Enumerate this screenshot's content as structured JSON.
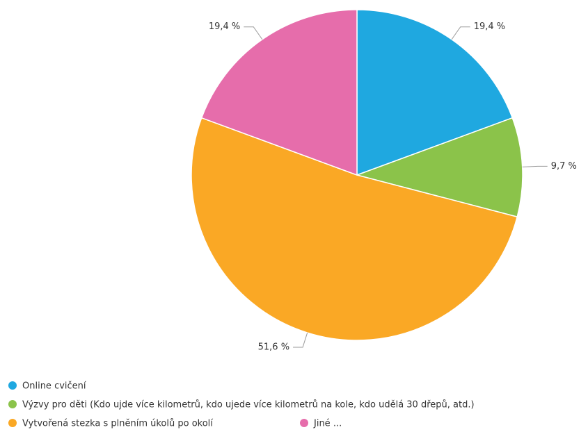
{
  "chart_data": {
    "type": "pie",
    "categories": [
      "Online cvičení",
      "Výzvy pro děti (Kdo ujde více kilometrů, kdo ujede více kilometrů na kole, kdo udělá 30 dřepů, atd.)",
      "Vytvořená stezka s plněním úkolů po okolí",
      "Jiné ..."
    ],
    "values": [
      19.4,
      9.7,
      51.6,
      19.4
    ],
    "value_labels": [
      "19,4 %",
      "9,7 %",
      "51,6 %",
      "19,4 %"
    ],
    "colors": [
      "#1fa8e0",
      "#8bc34a",
      "#faa825",
      "#e66dab"
    ]
  }
}
